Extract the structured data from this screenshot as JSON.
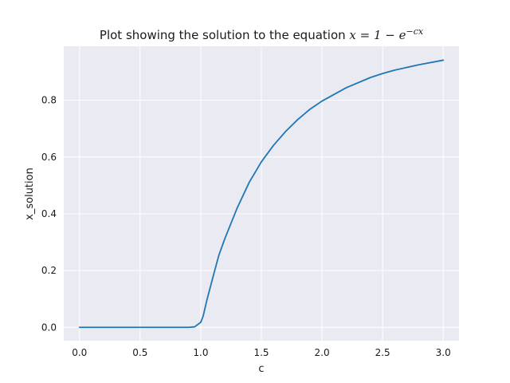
{
  "chart_data": {
    "type": "line",
    "title": "Plot showing the solution to the equation",
    "title_math": "x = 1 − e",
    "title_math_sup": "−cx",
    "xlabel": "c",
    "ylabel": "x_solution",
    "xlim": [
      -0.13,
      3.13
    ],
    "ylim": [
      -0.047,
      0.99
    ],
    "xticks": [
      {
        "value": 0.0,
        "label": "0.0"
      },
      {
        "value": 0.5,
        "label": "0.5"
      },
      {
        "value": 1.0,
        "label": "1.0"
      },
      {
        "value": 1.5,
        "label": "1.5"
      },
      {
        "value": 2.0,
        "label": "2.0"
      },
      {
        "value": 2.5,
        "label": "2.5"
      },
      {
        "value": 3.0,
        "label": "3.0"
      }
    ],
    "yticks": [
      {
        "value": 0.0,
        "label": "0.0"
      },
      {
        "value": 0.2,
        "label": "0.2"
      },
      {
        "value": 0.4,
        "label": "0.4"
      },
      {
        "value": 0.6,
        "label": "0.6"
      },
      {
        "value": 0.8,
        "label": "0.8"
      }
    ],
    "grid": true,
    "colors": {
      "plot_background": "#eaeaf2",
      "grid": "#ffffff",
      "line": "#1f77b4"
    },
    "series": [
      {
        "x": [
          0.0,
          0.25,
          0.5,
          0.75,
          0.9,
          0.95,
          1.0,
          1.02,
          1.05,
          1.1,
          1.15,
          1.2,
          1.3,
          1.4,
          1.5,
          1.6,
          1.7,
          1.8,
          1.9,
          2.0,
          2.2,
          2.4,
          2.5,
          2.6,
          2.8,
          3.0
        ],
        "y": [
          0.0,
          0.0,
          0.0,
          0.0,
          0.0,
          0.002,
          0.018,
          0.04,
          0.095,
          0.176,
          0.255,
          0.314,
          0.42,
          0.511,
          0.583,
          0.641,
          0.69,
          0.732,
          0.768,
          0.797,
          0.844,
          0.88,
          0.894,
          0.906,
          0.925,
          0.941
        ]
      }
    ]
  }
}
